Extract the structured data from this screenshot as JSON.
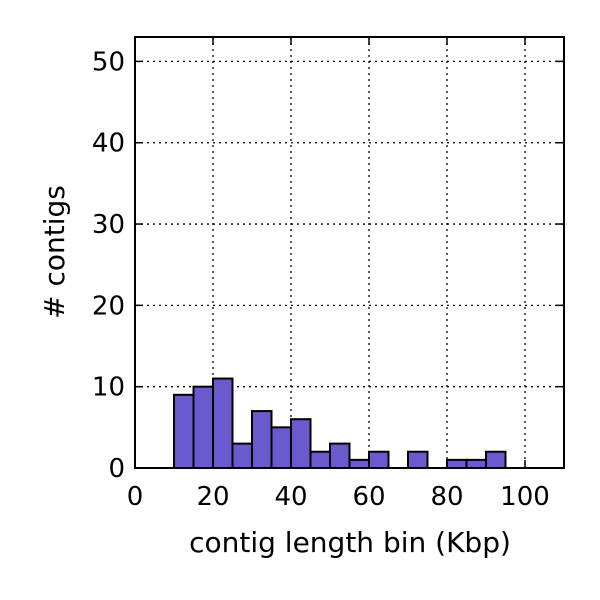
{
  "chart_data": {
    "type": "bar",
    "xlabel": "contig length bin (Kbp)",
    "ylabel": "# contigs",
    "xlim": [
      0,
      110
    ],
    "ylim": [
      0,
      53
    ],
    "grid": true,
    "bar_color": "#6a5acd",
    "x_ticks": [
      0,
      20,
      40,
      60,
      80,
      100
    ],
    "y_ticks": [
      0,
      10,
      20,
      30,
      40,
      50
    ],
    "x_tick_labels": [
      "0",
      "20",
      "40",
      "60",
      "80",
      "100"
    ],
    "y_tick_labels": [
      "0",
      "10",
      "20",
      "30",
      "40",
      "50"
    ],
    "bin_width": 5,
    "bins": [
      {
        "start": 0,
        "count": 0
      },
      {
        "start": 5,
        "count": 0
      },
      {
        "start": 10,
        "count": 9
      },
      {
        "start": 15,
        "count": 10
      },
      {
        "start": 20,
        "count": 11
      },
      {
        "start": 25,
        "count": 3
      },
      {
        "start": 30,
        "count": 7
      },
      {
        "start": 35,
        "count": 5
      },
      {
        "start": 40,
        "count": 6
      },
      {
        "start": 45,
        "count": 2
      },
      {
        "start": 50,
        "count": 3
      },
      {
        "start": 55,
        "count": 1
      },
      {
        "start": 60,
        "count": 2
      },
      {
        "start": 65,
        "count": 0
      },
      {
        "start": 70,
        "count": 2
      },
      {
        "start": 75,
        "count": 0
      },
      {
        "start": 80,
        "count": 1
      },
      {
        "start": 85,
        "count": 1
      },
      {
        "start": 90,
        "count": 2
      },
      {
        "start": 95,
        "count": 0
      },
      {
        "start": 100,
        "count": 0
      },
      {
        "start": 105,
        "count": 0
      }
    ]
  }
}
